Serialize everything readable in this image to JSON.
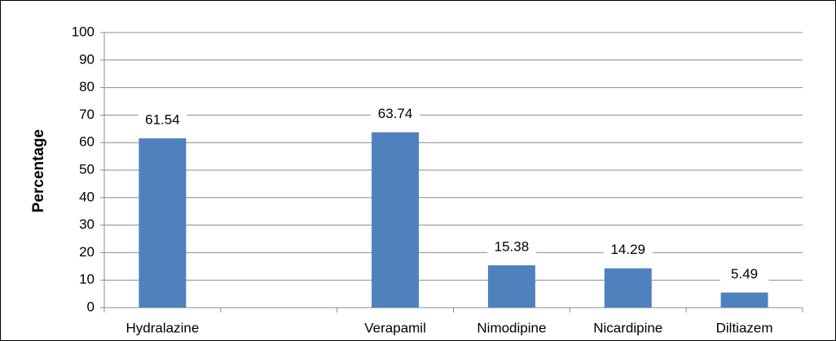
{
  "chart_data": {
    "type": "bar",
    "ylabel": "Percentage",
    "categories": [
      "Hydralazine",
      null,
      "Verapamil",
      "Nimodipine",
      "Nicardipine",
      "Diltiazem"
    ],
    "values": [
      61.54,
      null,
      63.74,
      15.38,
      14.29,
      5.49
    ],
    "color": "#4f81bd",
    "ylim": [
      0,
      100
    ],
    "yticks": [
      0,
      10,
      20,
      30,
      40,
      50,
      60,
      70,
      80,
      90,
      100
    ],
    "grid": true
  }
}
